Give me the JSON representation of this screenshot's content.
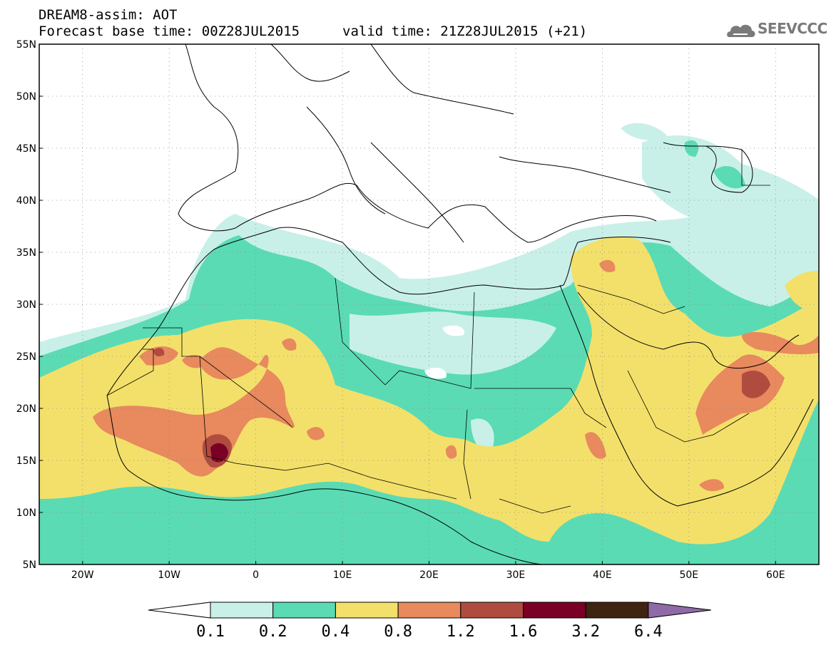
{
  "header": {
    "title": "DREAM8-assim: AOT",
    "base_time": "Forecast base time: 00Z28JUL2015",
    "valid_time": "valid time: 21Z28JUL2015 (+21)"
  },
  "logo": {
    "text": "SEEVCCC",
    "icon": "cloud-icon"
  },
  "map": {
    "lon_range": [
      -25,
      65
    ],
    "lat_range": [
      5,
      55
    ],
    "grid": "dotted",
    "lat_labels": [
      "55N",
      "50N",
      "45N",
      "40N",
      "35N",
      "30N",
      "25N",
      "20N",
      "15N",
      "10N",
      "5N"
    ],
    "lon_labels": [
      "20W",
      "10W",
      "0",
      "10E",
      "20E",
      "30E",
      "40E",
      "50E",
      "60E"
    ]
  },
  "colorbar": {
    "colors": [
      "#ffffff",
      "#c8f0e8",
      "#5adbb4",
      "#f3e06a",
      "#e8895e",
      "#b04c3f",
      "#7a0025",
      "#3f2412",
      "#8e6aa6"
    ],
    "labels": [
      "0.1",
      "0.2",
      "0.4",
      "0.8",
      "1.2",
      "1.6",
      "3.2",
      "6.4"
    ]
  }
}
